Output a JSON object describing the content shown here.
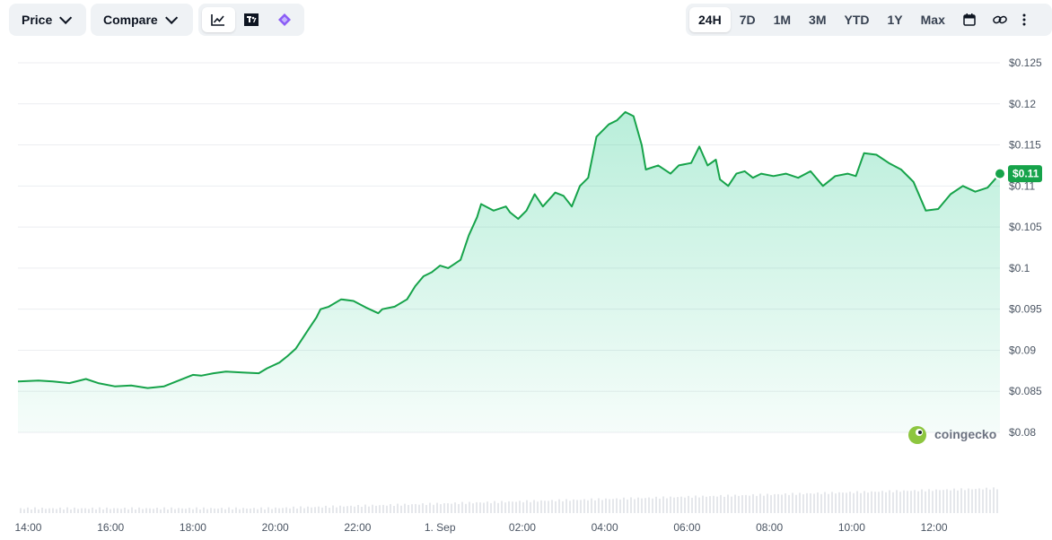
{
  "toolbar": {
    "price_label": "Price",
    "compare_label": "Compare",
    "view_icons": [
      "line-chart-icon",
      "tradingview-icon",
      "diamond-icon"
    ],
    "ranges": [
      "24H",
      "7D",
      "1M",
      "3M",
      "YTD",
      "1Y",
      "Max"
    ],
    "active_range": "24H",
    "right_icons": [
      "calendar-icon",
      "link-icon",
      "more-icon"
    ]
  },
  "watermark": "coingecko",
  "colors": {
    "line": "#16a34a",
    "fill": "#16c784",
    "badge": "#16a34a",
    "grid": "#eceef1",
    "volume": "#e5e7eb"
  },
  "chart_data": {
    "type": "area",
    "current_price_label": "$0.11",
    "current_price": 0.1115,
    "y_ticks": [
      "$0.125",
      "$0.12",
      "$0.115",
      "$0.11",
      "$0.105",
      "$0.1",
      "$0.095",
      "$0.09",
      "$0.085",
      "$0.08"
    ],
    "y_tick_values": [
      0.125,
      0.12,
      0.115,
      0.11,
      0.105,
      0.1,
      0.095,
      0.09,
      0.085,
      0.08
    ],
    "ylim": [
      0.08,
      0.125
    ],
    "x_ticks": [
      "14:00",
      "16:00",
      "18:00",
      "20:00",
      "22:00",
      "1. Sep",
      "02:00",
      "04:00",
      "06:00",
      "08:00",
      "10:00",
      "12:00"
    ],
    "x_tick_hours": [
      14,
      16,
      18,
      20,
      22,
      24,
      26,
      28,
      30,
      32,
      34,
      36
    ],
    "xlim_hours": [
      13.75,
      37.6
    ],
    "series": [
      {
        "hours": [
          13.75,
          14.25,
          14.6,
          15.0,
          15.4,
          15.7,
          16.1,
          16.5,
          16.9,
          17.3,
          17.6,
          18.0,
          18.2,
          18.5,
          18.8,
          19.2,
          19.6,
          19.8,
          20.1,
          20.3,
          20.5,
          20.8,
          21.0,
          21.1,
          21.3,
          21.6,
          21.9,
          22.2,
          22.5,
          22.6,
          22.9,
          23.2,
          23.4,
          23.6,
          23.8,
          24.0,
          24.2,
          24.5,
          24.7,
          24.9,
          25.0,
          25.3,
          25.6,
          25.7,
          25.9,
          26.1,
          26.3,
          26.5,
          26.8,
          27.0,
          27.2,
          27.4,
          27.6,
          27.8,
          28.1,
          28.3,
          28.5,
          28.7,
          28.9,
          29.0,
          29.3,
          29.6,
          29.8,
          30.1,
          30.3,
          30.5,
          30.7,
          30.8,
          31.0,
          31.2,
          31.4,
          31.6,
          31.8,
          32.1,
          32.4,
          32.7,
          33.0,
          33.3,
          33.6,
          33.9,
          34.1,
          34.3,
          34.6,
          34.9,
          35.2,
          35.5,
          35.8,
          36.1,
          36.4,
          36.7,
          37.0,
          37.3,
          37.6
        ],
        "values": [
          0.0862,
          0.0863,
          0.0862,
          0.086,
          0.0865,
          0.086,
          0.0856,
          0.0857,
          0.0854,
          0.0856,
          0.0862,
          0.087,
          0.0869,
          0.0872,
          0.0874,
          0.0873,
          0.0872,
          0.0878,
          0.0885,
          0.0893,
          0.0902,
          0.0925,
          0.094,
          0.095,
          0.0953,
          0.0962,
          0.096,
          0.0952,
          0.0945,
          0.095,
          0.0953,
          0.0962,
          0.0978,
          0.099,
          0.0995,
          0.1003,
          0.1,
          0.101,
          0.104,
          0.1062,
          0.1078,
          0.107,
          0.1075,
          0.1068,
          0.106,
          0.107,
          0.109,
          0.1075,
          0.1092,
          0.1088,
          0.1075,
          0.11,
          0.111,
          0.116,
          0.1175,
          0.118,
          0.119,
          0.1185,
          0.115,
          0.112,
          0.1125,
          0.1115,
          0.1125,
          0.1128,
          0.1148,
          0.1125,
          0.1132,
          0.1108,
          0.11,
          0.1115,
          0.1118,
          0.111,
          0.1115,
          0.1112,
          0.1115,
          0.111,
          0.1118,
          0.11,
          0.1112,
          0.1115,
          0.1112,
          0.114,
          0.1138,
          0.1128,
          0.112,
          0.1105,
          0.107,
          0.1072,
          0.109,
          0.11,
          0.1093,
          0.1098,
          0.1115
        ]
      }
    ],
    "grid": true,
    "legend": "none"
  }
}
